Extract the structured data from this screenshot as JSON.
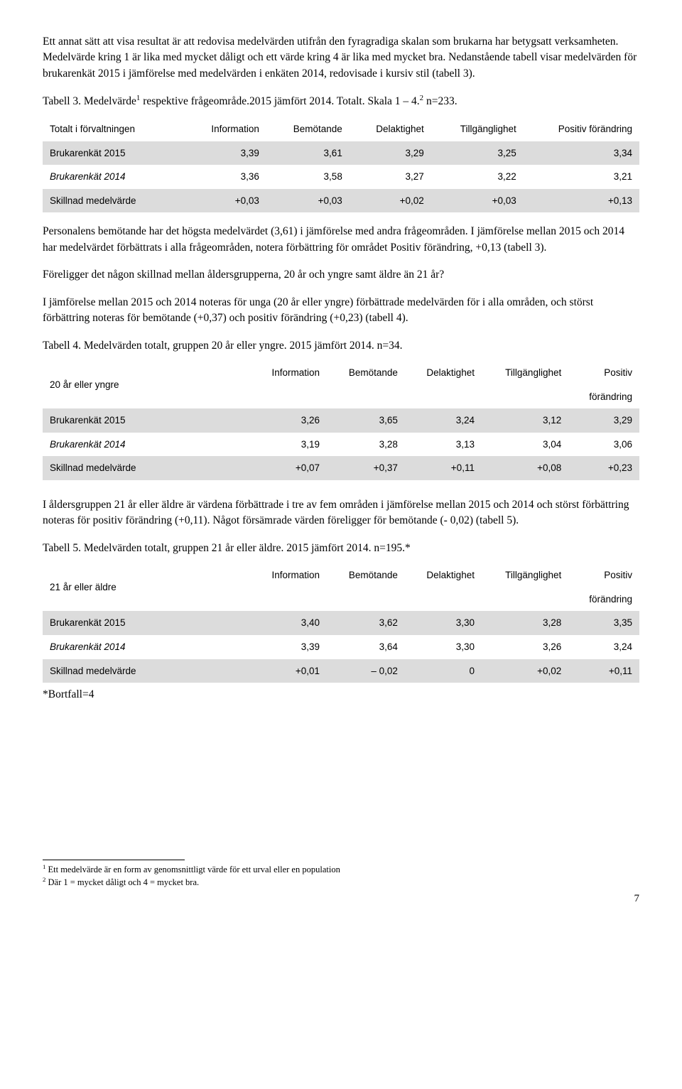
{
  "para1": "Ett annat sätt att visa resultat är att redovisa medelvärden utifrån den fyragradiga skalan som brukarna har betygsatt verksamheten. Medelvärde kring 1 är lika med mycket dåligt och ett värde kring 4 är lika med mycket bra. Nedanstående tabell visar medelvärden för brukarenkät 2015 i jämförelse med medelvärden i enkäten 2014, redovisade i kursiv stil (tabell 3).",
  "tbl3_title_a": "Tabell 3. Medelvärde",
  "tbl3_title_b": " respektive frågeområde.2015 jämfört 2014. Totalt. Skala 1 – 4.",
  "tbl3_title_c": " n=233.",
  "columns": [
    "Information",
    "Bemötande",
    "Delaktighet",
    "Tillgänglighet",
    "Positiv förändring"
  ],
  "columns_split": [
    "Information",
    "Bemötande",
    "Delaktighet",
    "Tillgänglighet",
    "Positiv"
  ],
  "forandring": "förändring",
  "tbl3": {
    "row_label": "Totalt i förvaltningen",
    "r1_label": "Brukarenkät 2015",
    "r1": [
      "3,39",
      "3,61",
      "3,29",
      "3,25",
      "3,34"
    ],
    "r2_label": "Brukarenkät 2014",
    "r2": [
      "3,36",
      "3,58",
      "3,27",
      "3,22",
      "3,21"
    ],
    "r3_label": "Skillnad medelvärde",
    "r3": [
      "+0,03",
      "+0,03",
      "+0,02",
      "+0,03",
      "+0,13"
    ]
  },
  "para2": "Personalens bemötande har det högsta medelvärdet (3,61) i jämförelse med andra frågeområden. I jämförelse mellan 2015 och 2014 har medelvärdet förbättrats i alla frågeområden, notera förbättring för området Positiv förändring, +0,13 (tabell 3).",
  "para3": "Föreligger det någon skillnad mellan åldersgrupperna, 20 år och yngre samt äldre än 21 år?",
  "para4": "I jämförelse mellan 2015 och 2014 noteras för unga (20 år eller yngre) förbättrade medelvärden för i alla områden, och störst förbättring noteras för bemötande (+0,37) och positiv förändring (+0,23) (tabell 4).",
  "tbl4_title": "Tabell 4. Medelvärden totalt, gruppen 20 år eller yngre. 2015 jämfört 2014. n=34.",
  "tbl4": {
    "row_label": "20 år eller yngre",
    "r1_label": "Brukarenkät 2015",
    "r1": [
      "3,26",
      "3,65",
      "3,24",
      "3,12",
      "3,29"
    ],
    "r2_label": "Brukarenkät 2014",
    "r2": [
      "3,19",
      "3,28",
      "3,13",
      "3,04",
      "3,06"
    ],
    "r3_label": "Skillnad medelvärde",
    "r3": [
      "+0,07",
      "+0,37",
      "+0,11",
      "+0,08",
      "+0,23"
    ]
  },
  "para5": "I åldersgruppen 21 år eller äldre är värdena förbättrade i tre av fem områden i jämförelse mellan 2015 och 2014 och störst förbättring noteras för positiv förändring (+0,11). Något försämrade värden föreligger för bemötande (- 0,02) (tabell 5).",
  "tbl5_title": "Tabell 5. Medelvärden totalt, gruppen 21 år eller äldre. 2015 jämfört 2014. n=195.*",
  "tbl5": {
    "row_label": "21 år eller äldre",
    "r1_label": "Brukarenkät 2015",
    "r1": [
      "3,40",
      "3,62",
      "3,30",
      "3,28",
      "3,35"
    ],
    "r2_label": "Brukarenkät 2014",
    "r2": [
      "3,39",
      "3,64",
      "3,30",
      "3,26",
      "3,24"
    ],
    "r3_label": "Skillnad medelvärde",
    "r3": [
      "+0,01",
      "– 0,02",
      "0",
      "+0,02",
      "+0,11"
    ]
  },
  "bortfall": "*Bortfall=4",
  "foot1": " Ett medelvärde är en form av genomsnittligt värde för ett urval eller en population",
  "foot2": " Där 1 = mycket dåligt och 4 = mycket bra.",
  "page": "7"
}
